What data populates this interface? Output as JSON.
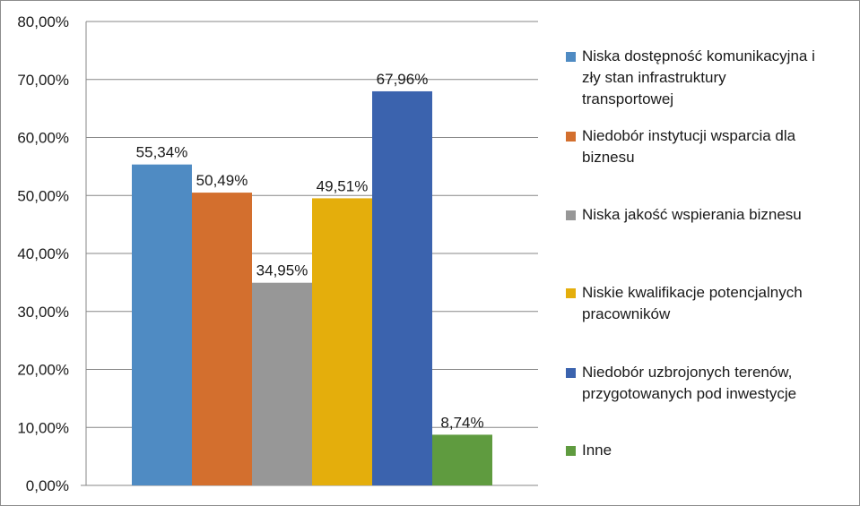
{
  "chart_data": {
    "type": "bar",
    "categories": [
      "Niska dostępność komunikacyjna i zły stan infrastruktury transportowej",
      "Niedobór instytucji wsparcia dla biznesu",
      "Niska jakość wspierania biznesu",
      "Niskie kwalifikacje potencjalnych pracowników",
      "Niedobór uzbrojonych terenów, przygotowanych pod inwestycje",
      "Inne"
    ],
    "values": [
      55.34,
      50.49,
      34.95,
      49.51,
      67.96,
      8.74
    ],
    "data_labels": [
      "55,34%",
      "50,49%",
      "34,95%",
      "49,51%",
      "67,96%",
      "8,74%"
    ],
    "colors": [
      "#4f8bc3",
      "#d36f2e",
      "#979797",
      "#e4ae0c",
      "#3b63ae",
      "#5f9b3f"
    ],
    "ylim": [
      0,
      80
    ],
    "yticks": [
      "0,00%",
      "10,00%",
      "20,00%",
      "30,00%",
      "40,00%",
      "50,00%",
      "60,00%",
      "70,00%",
      "80,00%"
    ],
    "grid": true,
    "legend_position": "right",
    "legend_lines": [
      [
        "Niska dostępność komunikacyjna i",
        "zły stan infrastruktury",
        "transportowej"
      ],
      [
        "Niedobór instytucji wsparcia dla",
        "biznesu"
      ],
      [
        "Niska jakość wspierania biznesu"
      ],
      [
        "Niskie kwalifikacje potencjalnych",
        "pracowników"
      ],
      [
        "Niedobór uzbrojonych terenów,",
        "przygotowanych pod inwestycje"
      ],
      [
        "Inne"
      ]
    ]
  }
}
